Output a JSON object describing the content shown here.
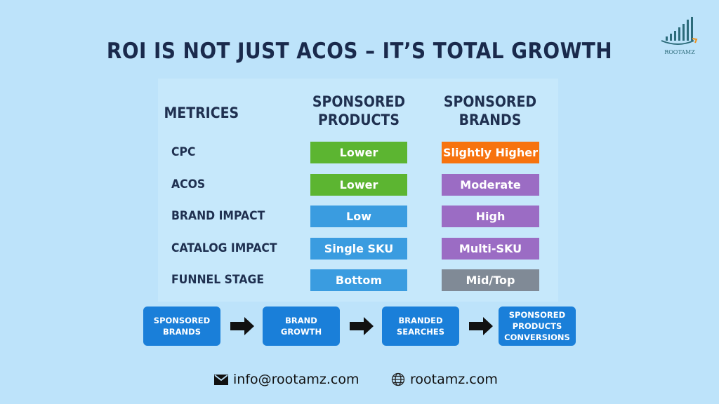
{
  "title": "ROI IS NOT JUST ACOS – IT’S TOTAL GROWTH",
  "logo": {
    "text": "ROOTAMZ"
  },
  "table": {
    "headers": [
      "METRICES",
      "SPONSORED\nPRODUCTS",
      "SPONSORED\nBRANDS"
    ],
    "rows": [
      {
        "metric": "CPC",
        "sp": "Lower",
        "sp_color": "#5cb531",
        "sb": "Slightly Higher",
        "sb_color": "#f7730e"
      },
      {
        "metric": "ACOS",
        "sp": "Lower",
        "sp_color": "#5cb531",
        "sb": "Moderate",
        "sb_color": "#9b6cc4"
      },
      {
        "metric": "BRAND IMPACT",
        "sp": "Low",
        "sp_color": "#3a9ce0",
        "sb": "High",
        "sb_color": "#9b6cc4"
      },
      {
        "metric": "CATALOG IMPACT",
        "sp": "Single SKU",
        "sp_color": "#3a9ce0",
        "sb": "Multi-SKU",
        "sb_color": "#9b6cc4"
      },
      {
        "metric": "FUNNEL STAGE",
        "sp": "Bottom",
        "sp_color": "#3a9ce0",
        "sb": "Mid/Top",
        "sb_color": "#808a96"
      }
    ]
  },
  "flow": [
    "SPONSORED\nBRANDS",
    "BRAND\nGROWTH",
    "BRANDED\nSEARCHES",
    "SPONSORED\nPRODUCTS\nCONVERSIONS"
  ],
  "contact": {
    "email": "info@rootamz.com",
    "email_icon": "envelope-icon",
    "website": "rootamz.com",
    "website_icon": "globe-icon"
  }
}
